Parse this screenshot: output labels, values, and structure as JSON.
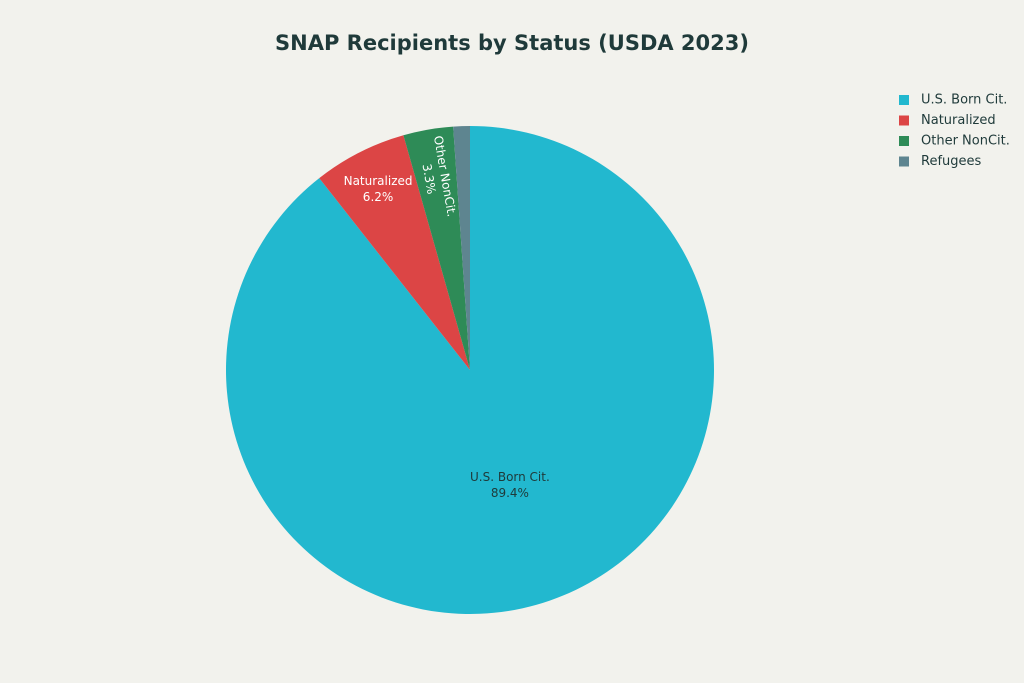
{
  "chart_data": {
    "type": "pie",
    "title": "SNAP Recipients by Status (USDA 2023)",
    "categories": [
      "U.S. Born Cit.",
      "Naturalized",
      "Other NonCit.",
      "Refugees"
    ],
    "values": [
      89.4,
      6.2,
      3.3,
      1.1
    ],
    "value_labels": [
      "89.4%",
      "6.2%",
      "3.3%",
      null
    ],
    "colors": [
      "#22b8cf",
      "#dc4545",
      "#2e8b57",
      "#5e8590"
    ],
    "legend": "top-right"
  }
}
